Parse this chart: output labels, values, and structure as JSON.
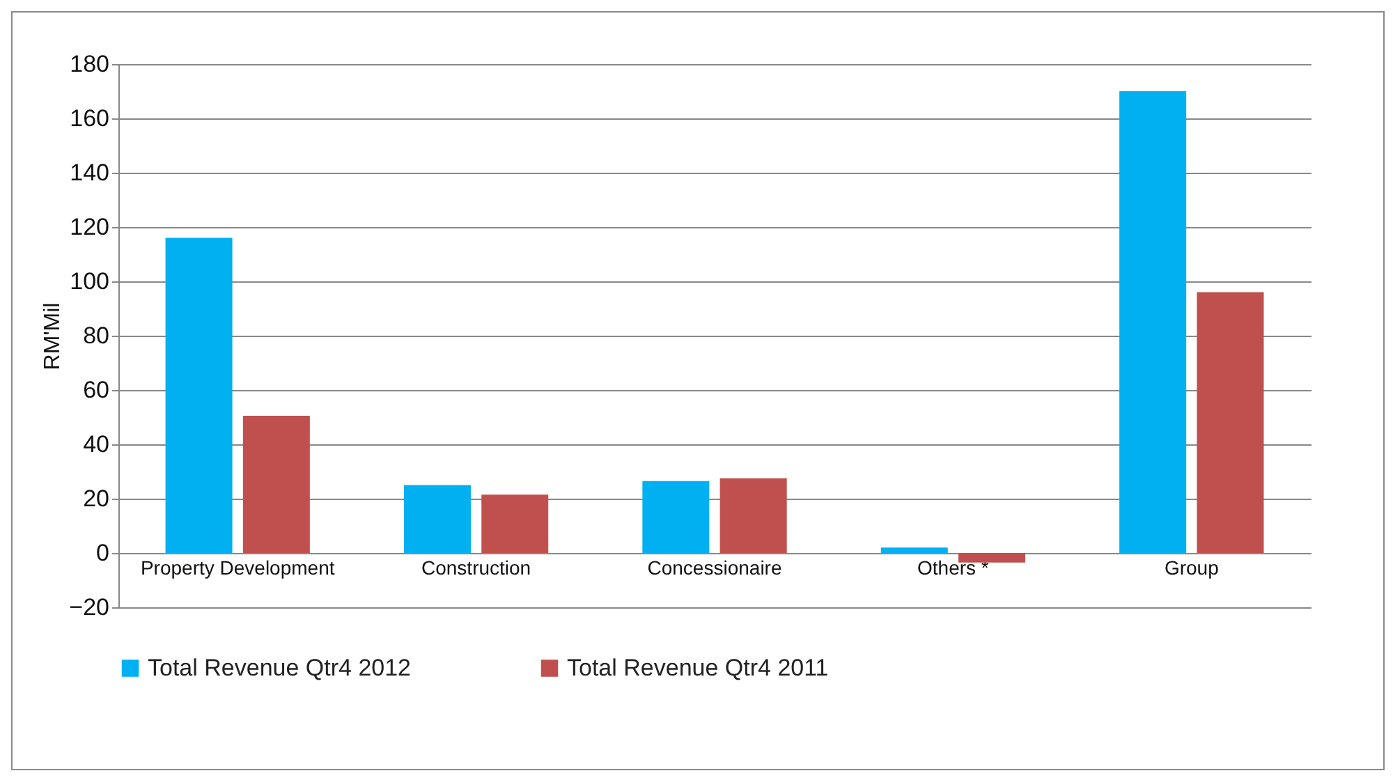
{
  "chart_data": {
    "type": "bar",
    "ylabel": "RM'Mil",
    "categories": [
      "Property Development",
      "Construction",
      "Concessionaire",
      "Others *",
      "Group"
    ],
    "series": [
      {
        "name": "Total Revenue Qtr4 2012",
        "color": "#00b0f0",
        "values": [
          116,
          25,
          26.5,
          2,
          170
        ]
      },
      {
        "name": "Total Revenue Qtr4 2011",
        "color": "#c0504d",
        "values": [
          50.5,
          21.5,
          27.5,
          -3.5,
          96
        ]
      }
    ],
    "ylim": [
      -20,
      180
    ],
    "yticks": [
      -20,
      0,
      20,
      40,
      60,
      80,
      100,
      120,
      140,
      160,
      180
    ],
    "grid": "y",
    "legend": "bottom"
  }
}
